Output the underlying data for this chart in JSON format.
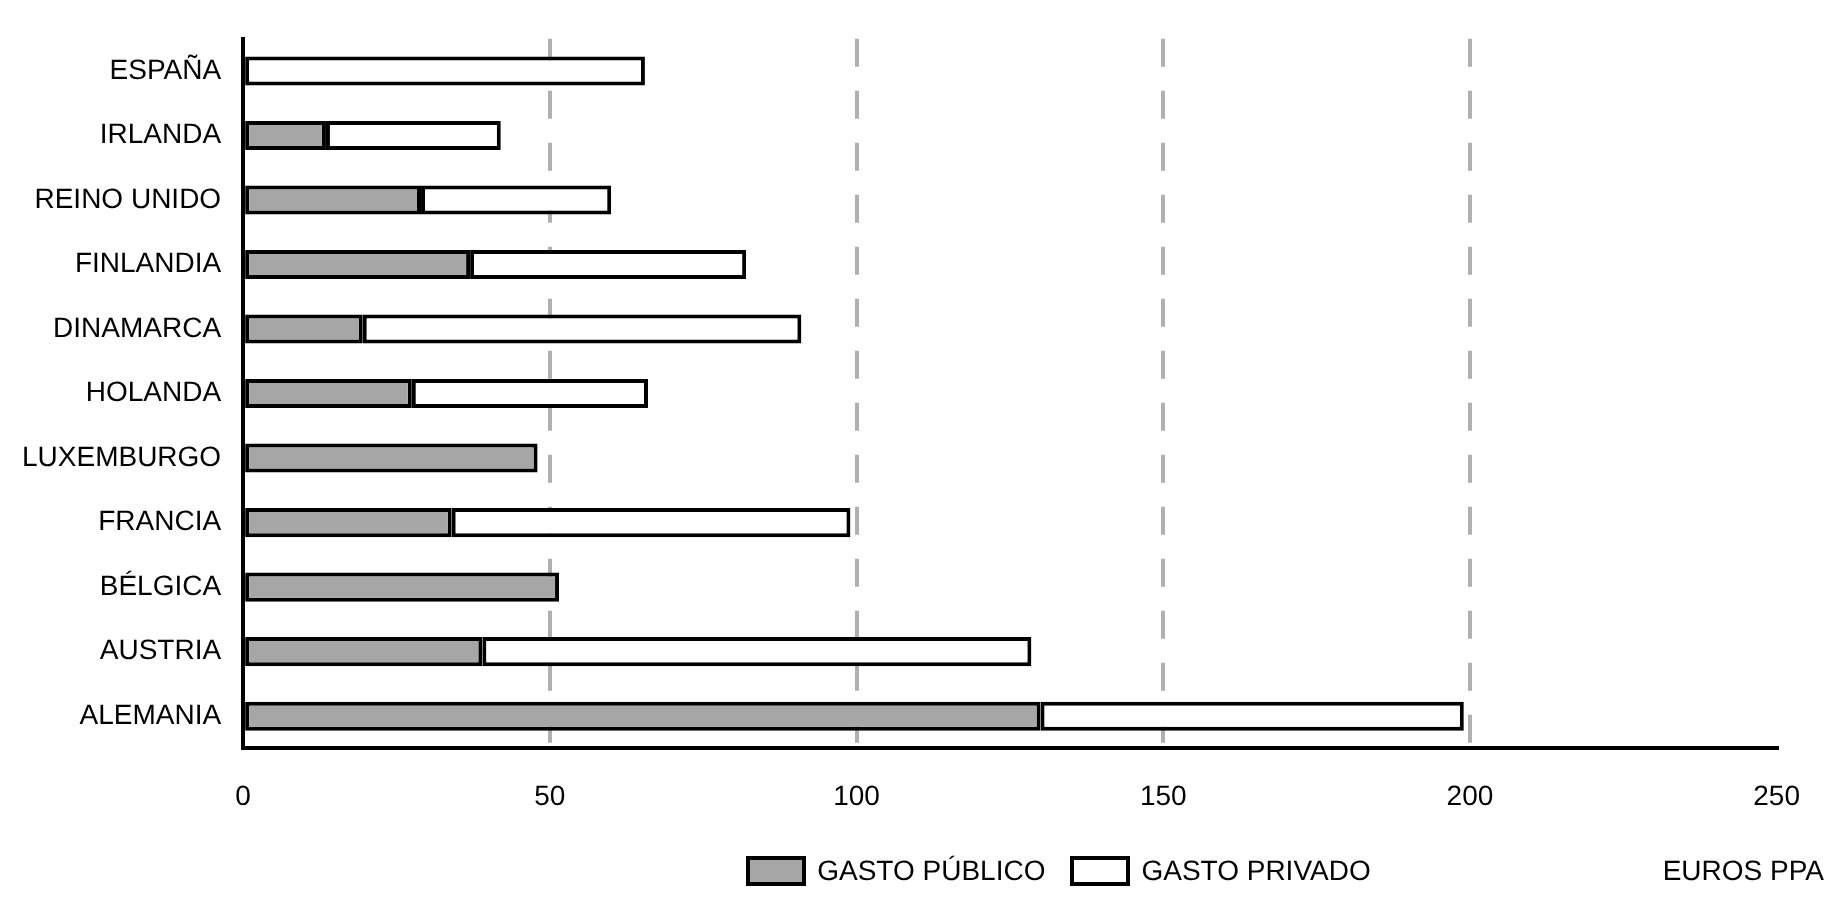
{
  "chart_data": {
    "type": "bar",
    "orientation": "horizontal",
    "stacked": true,
    "xlabel": "EUROS PPA",
    "categories": [
      "ESPAÑA",
      "IRLANDA",
      "REINO UNIDO",
      "FINLANDIA",
      "DINAMARCA",
      "HOLANDA",
      "LUXEMBURGO",
      "FRANCIA",
      "BÉLGICA",
      "AUSTRIA",
      "ALEMANIA"
    ],
    "series": [
      {
        "name": "GASTO PÚBLICO",
        "color": "#a6a6a6",
        "values": [
          0,
          13.5,
          29,
          37,
          19.5,
          27.5,
          48,
          34,
          51.5,
          39,
          130
        ]
      },
      {
        "name": "GASTO PRIVADO",
        "color": "#ffffff",
        "values": [
          65.5,
          28.5,
          31,
          45,
          71.5,
          38.5,
          0,
          65,
          0,
          89.5,
          69
        ]
      }
    ],
    "xlim": [
      0,
      250
    ],
    "xticks": [
      0,
      50,
      100,
      150,
      200,
      250
    ],
    "grid": "x",
    "legend": "bottom"
  }
}
